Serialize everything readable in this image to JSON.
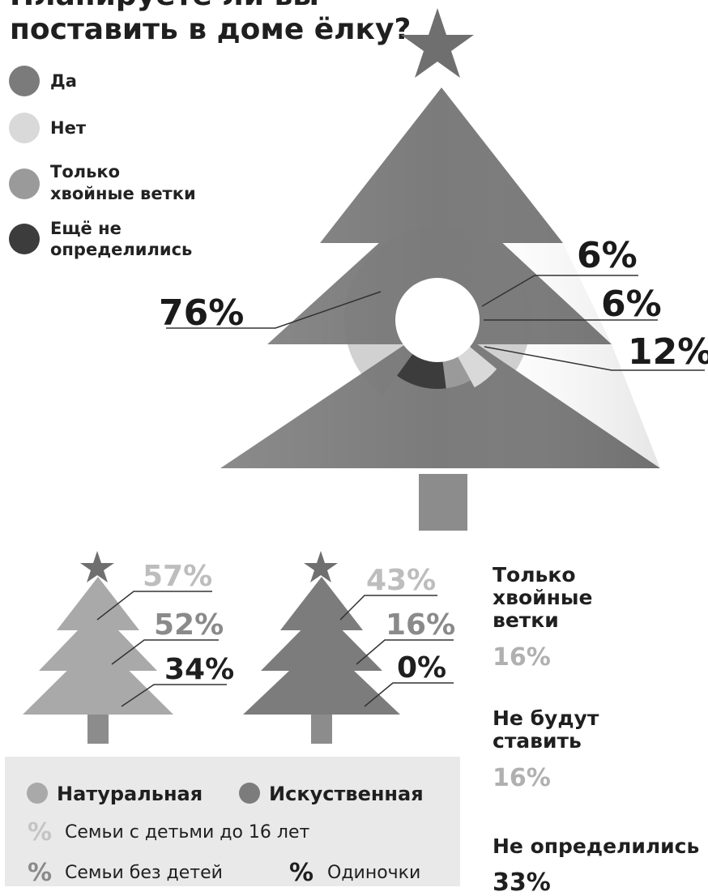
{
  "title": [
    "Планируете ли вы",
    "поставить в доме ёлку?"
  ],
  "colors": {
    "yes": "#7b7b7b",
    "no": "#d9d9d9",
    "branches": "#9a9a9a",
    "undecided": "#3c3c3c",
    "natural": "#a9a9a9",
    "artificial": "#7c7c7c",
    "star": "#6f6f6f",
    "trunk": "#8c8c8c"
  },
  "legend": [
    {
      "label_lines": [
        "Да"
      ],
      "color_key": "yes"
    },
    {
      "label_lines": [
        "Нет"
      ],
      "color_key": "no"
    },
    {
      "label_lines": [
        "Только",
        "хвойные ветки"
      ],
      "color_key": "branches"
    },
    {
      "label_lines": [
        "Ещё не",
        "определились"
      ],
      "color_key": "undecided"
    }
  ],
  "chart_data": [
    {
      "type": "pie",
      "categories": [
        "Да",
        "Нет",
        "Только хвойные ветки",
        "Ещё не определились"
      ],
      "values": [
        76,
        6,
        6,
        12
      ],
      "labels": [
        "76%",
        "6%",
        "6%",
        "12%"
      ]
    },
    {
      "type": "table",
      "categories": [
        "Семьи с детьми до 16 лет",
        "Семьи без детей",
        "Одиночки"
      ],
      "series": [
        {
          "name": "Натуральная",
          "values": [
            57,
            52,
            34
          ],
          "labels": [
            "57%",
            "52%",
            "34%"
          ]
        },
        {
          "name": "Искуственная",
          "values": [
            43,
            16,
            0
          ],
          "labels": [
            "43%",
            "16%",
            "0%"
          ]
        }
      ]
    }
  ],
  "side_stats": [
    {
      "label_lines": [
        "Только",
        "хвойные",
        "ветки"
      ],
      "value": "16%"
    },
    {
      "label_lines": [
        "Не будут",
        "ставить"
      ],
      "value": "16%"
    },
    {
      "label_lines": [
        "Не определились"
      ],
      "value": "33%"
    }
  ],
  "footer": {
    "legend_natural": "Натуральная",
    "legend_artificial": "Искуственная",
    "pct_symbol": "%",
    "group_with_kids": "Семьи с детьми до 16 лет",
    "group_no_kids": "Семьи без детей",
    "group_single": "Одиночки"
  }
}
